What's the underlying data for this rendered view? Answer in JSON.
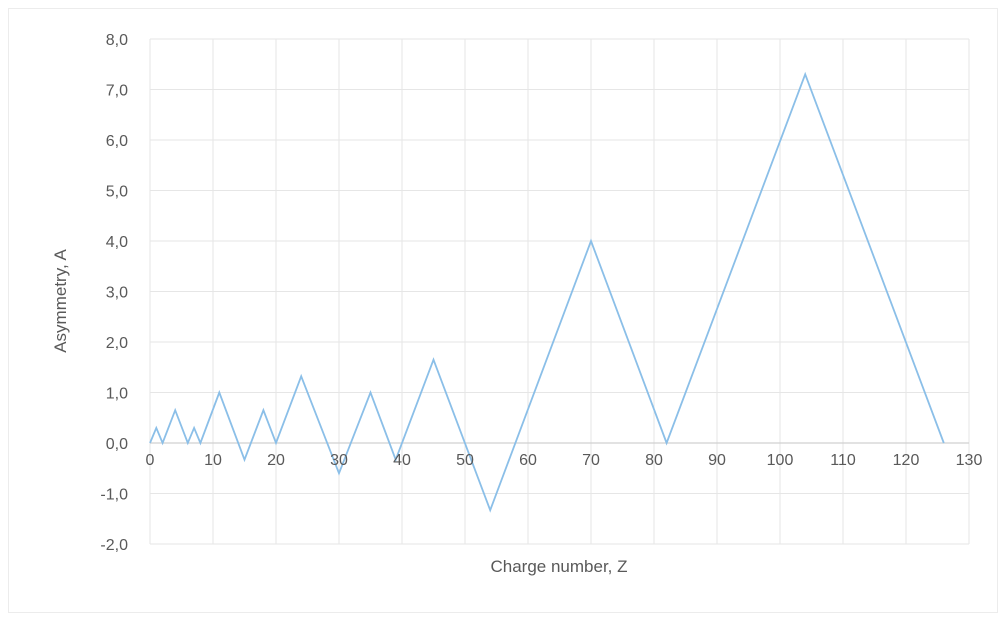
{
  "chart_data": {
    "type": "line",
    "title": "",
    "xlabel": "Charge number, Z",
    "ylabel": "Asymmetry, A",
    "xlim": [
      0,
      130
    ],
    "ylim": [
      -2,
      8
    ],
    "x_ticks": [
      "0",
      "10",
      "20",
      "30",
      "40",
      "50",
      "60",
      "70",
      "80",
      "90",
      "100",
      "110",
      "120",
      "130"
    ],
    "y_ticks": [
      "8,0",
      "7,0",
      "6,0",
      "5,0",
      "4,0",
      "3,0",
      "2,0",
      "1,0",
      "0,0",
      "-1,0",
      "-2,0"
    ],
    "grid": true,
    "legend": "none",
    "line_color": "#8bbfe8",
    "grid_color": "#e6e6e6",
    "series": [
      {
        "x": [
          0,
          1,
          2,
          4,
          6,
          7,
          8,
          11,
          15,
          18,
          20,
          24,
          30,
          35,
          39,
          45,
          54,
          70,
          82,
          104,
          126
        ],
        "values": [
          0.0,
          0.3,
          0.0,
          0.65,
          0.0,
          0.3,
          0.0,
          1.0,
          -0.33,
          0.65,
          0.0,
          1.32,
          -0.6,
          1.0,
          -0.33,
          1.65,
          -1.33,
          4.0,
          0.0,
          7.3,
          0.0
        ]
      }
    ]
  }
}
